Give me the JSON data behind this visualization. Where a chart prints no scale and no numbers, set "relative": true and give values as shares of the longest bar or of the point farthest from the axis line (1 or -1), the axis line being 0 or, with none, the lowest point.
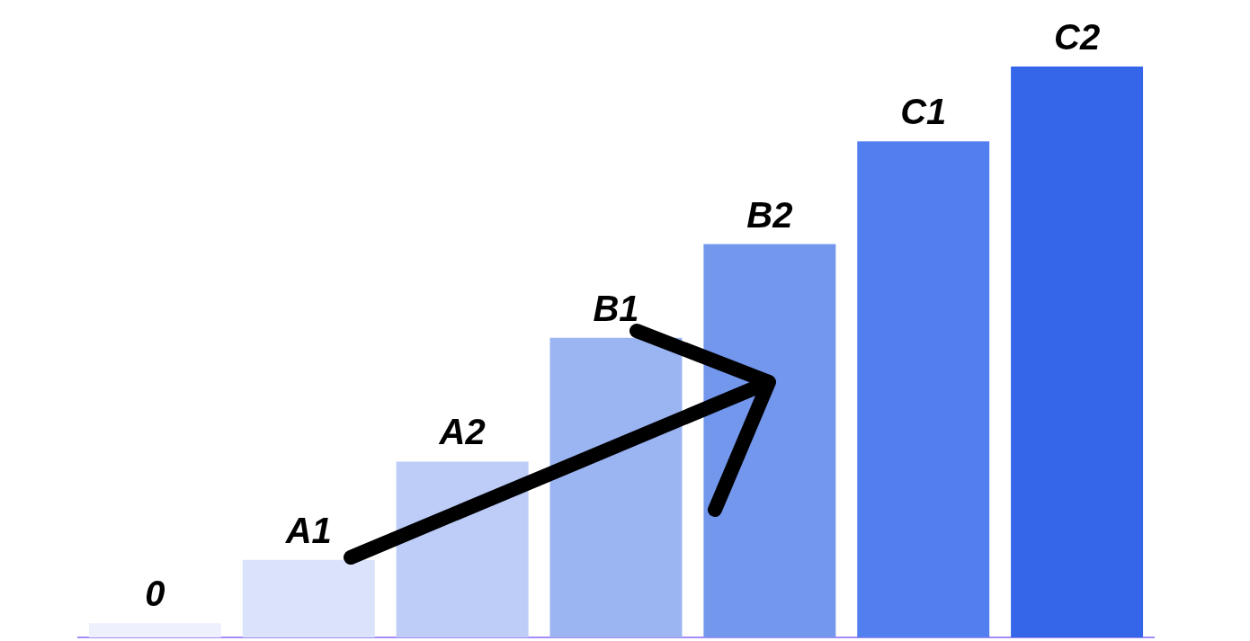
{
  "chart_data": {
    "type": "bar",
    "relative": true,
    "categories": [
      "0",
      "A1",
      "A2",
      "B1",
      "B2",
      "C1",
      "C2"
    ],
    "values": [
      0.025,
      0.136,
      0.308,
      0.525,
      0.689,
      0.869,
      1
    ],
    "colors": [
      "#eef1fd",
      "#dbe3fc",
      "#bdcdf8",
      "#9bb4f2",
      "#7397ed",
      "#527ff0",
      "#3566ea"
    ],
    "grid": false,
    "legend": false
  }
}
